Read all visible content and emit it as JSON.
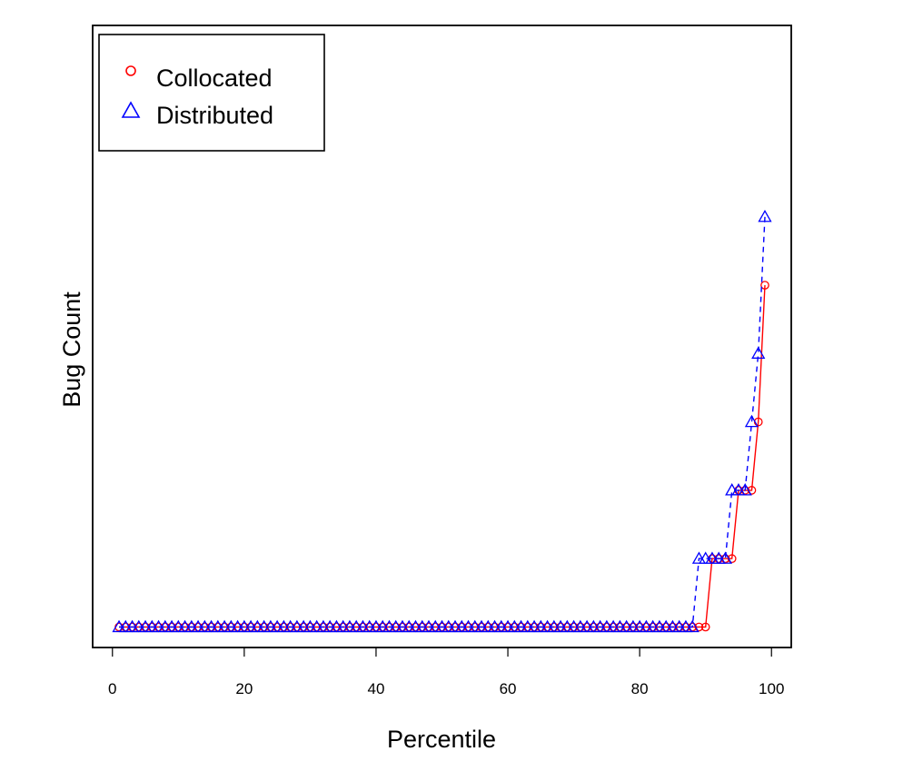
{
  "chart_data": {
    "type": "line",
    "title": "",
    "xlabel": "Percentile",
    "ylabel": "Bug Count",
    "xlim": [
      -3,
      103
    ],
    "ylim": [
      -0.3,
      8.8
    ],
    "xticks": [
      0,
      20,
      40,
      60,
      80,
      100
    ],
    "yticks_shown": false,
    "grid": false,
    "legend": {
      "position": "top-left",
      "entries": [
        "Collocated",
        "Distributed"
      ]
    },
    "series": [
      {
        "name": "Collocated",
        "color": "#ff0000",
        "marker": "circle",
        "line_style": "solid",
        "x": [
          1,
          2,
          3,
          4,
          5,
          6,
          7,
          8,
          9,
          10,
          11,
          12,
          13,
          14,
          15,
          16,
          17,
          18,
          19,
          20,
          21,
          22,
          23,
          24,
          25,
          26,
          27,
          28,
          29,
          30,
          31,
          32,
          33,
          34,
          35,
          36,
          37,
          38,
          39,
          40,
          41,
          42,
          43,
          44,
          45,
          46,
          47,
          48,
          49,
          50,
          51,
          52,
          53,
          54,
          55,
          56,
          57,
          58,
          59,
          60,
          61,
          62,
          63,
          64,
          65,
          66,
          67,
          68,
          69,
          70,
          71,
          72,
          73,
          74,
          75,
          76,
          77,
          78,
          79,
          80,
          81,
          82,
          83,
          84,
          85,
          86,
          87,
          88,
          89,
          90,
          91,
          92,
          93,
          94,
          95,
          96,
          97,
          98,
          99
        ],
        "y": [
          0,
          0,
          0,
          0,
          0,
          0,
          0,
          0,
          0,
          0,
          0,
          0,
          0,
          0,
          0,
          0,
          0,
          0,
          0,
          0,
          0,
          0,
          0,
          0,
          0,
          0,
          0,
          0,
          0,
          0,
          0,
          0,
          0,
          0,
          0,
          0,
          0,
          0,
          0,
          0,
          0,
          0,
          0,
          0,
          0,
          0,
          0,
          0,
          0,
          0,
          0,
          0,
          0,
          0,
          0,
          0,
          0,
          0,
          0,
          0,
          0,
          0,
          0,
          0,
          0,
          0,
          0,
          0,
          0,
          0,
          0,
          0,
          0,
          0,
          0,
          0,
          0,
          0,
          0,
          0,
          0,
          0,
          0,
          0,
          0,
          0,
          0,
          0,
          0,
          0,
          1,
          1,
          1,
          1,
          2,
          2,
          2,
          3,
          5
        ]
      },
      {
        "name": "Distributed",
        "color": "#0000ff",
        "marker": "triangle",
        "line_style": "dashed",
        "x": [
          1,
          2,
          3,
          4,
          5,
          6,
          7,
          8,
          9,
          10,
          11,
          12,
          13,
          14,
          15,
          16,
          17,
          18,
          19,
          20,
          21,
          22,
          23,
          24,
          25,
          26,
          27,
          28,
          29,
          30,
          31,
          32,
          33,
          34,
          35,
          36,
          37,
          38,
          39,
          40,
          41,
          42,
          43,
          44,
          45,
          46,
          47,
          48,
          49,
          50,
          51,
          52,
          53,
          54,
          55,
          56,
          57,
          58,
          59,
          60,
          61,
          62,
          63,
          64,
          65,
          66,
          67,
          68,
          69,
          70,
          71,
          72,
          73,
          74,
          75,
          76,
          77,
          78,
          79,
          80,
          81,
          82,
          83,
          84,
          85,
          86,
          87,
          88,
          89,
          90,
          91,
          92,
          93,
          94,
          95,
          96,
          97,
          98,
          99
        ],
        "y": [
          0,
          0,
          0,
          0,
          0,
          0,
          0,
          0,
          0,
          0,
          0,
          0,
          0,
          0,
          0,
          0,
          0,
          0,
          0,
          0,
          0,
          0,
          0,
          0,
          0,
          0,
          0,
          0,
          0,
          0,
          0,
          0,
          0,
          0,
          0,
          0,
          0,
          0,
          0,
          0,
          0,
          0,
          0,
          0,
          0,
          0,
          0,
          0,
          0,
          0,
          0,
          0,
          0,
          0,
          0,
          0,
          0,
          0,
          0,
          0,
          0,
          0,
          0,
          0,
          0,
          0,
          0,
          0,
          0,
          0,
          0,
          0,
          0,
          0,
          0,
          0,
          0,
          0,
          0,
          0,
          0,
          0,
          0,
          0,
          0,
          0,
          0,
          0,
          1,
          1,
          1,
          1,
          1,
          2,
          2,
          2,
          3,
          4,
          6
        ]
      }
    ]
  }
}
